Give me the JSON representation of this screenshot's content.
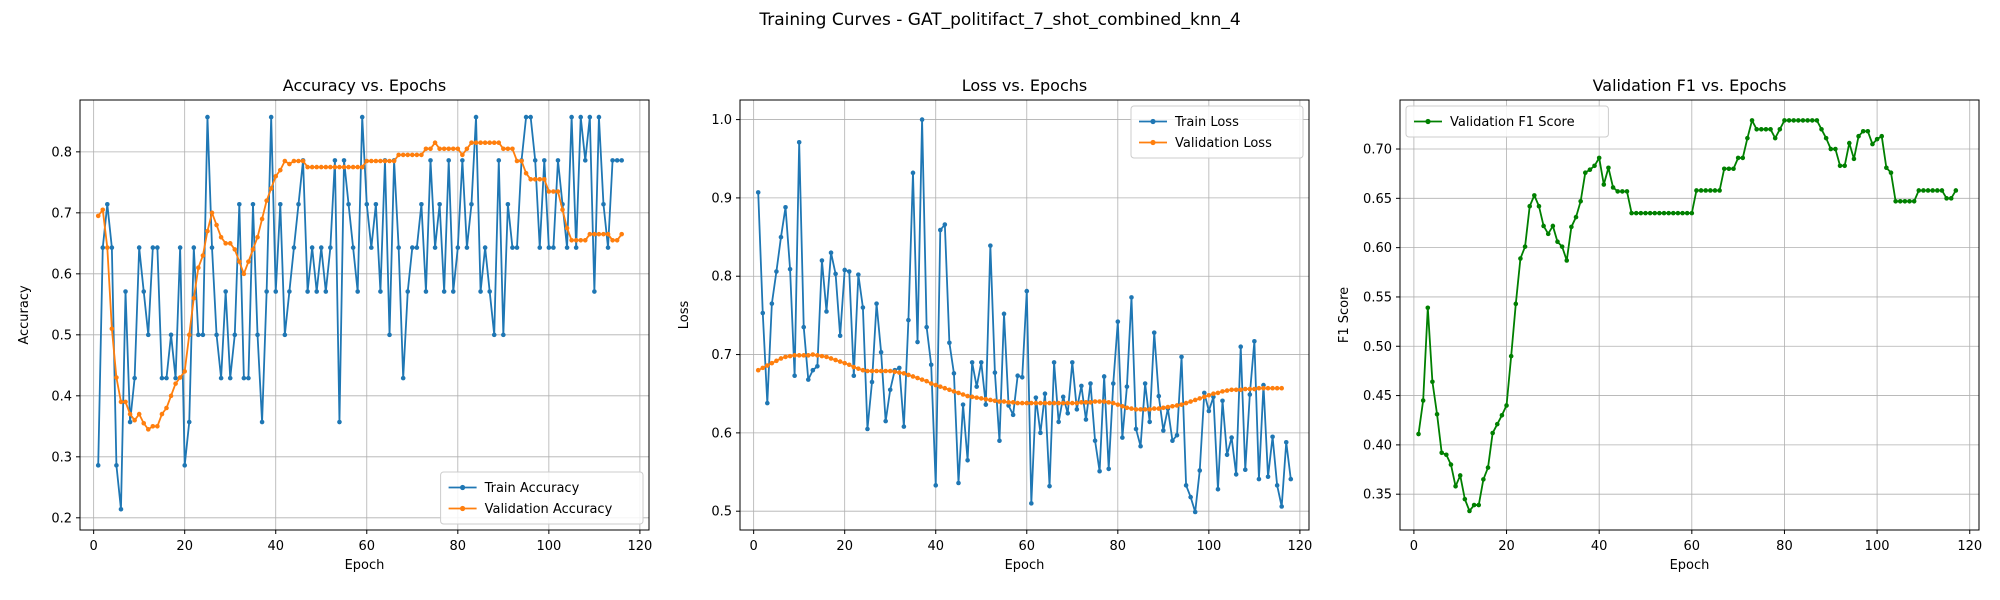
{
  "figure": {
    "suptitle": "Training Curves - GAT_politifact_7_shot_combined_knn_4"
  },
  "chart_data": [
    {
      "type": "line",
      "title": "Accuracy vs. Epochs",
      "xlabel": "Epoch",
      "ylabel": "Accuracy",
      "xlim": [
        -3,
        122
      ],
      "ylim": [
        0.18,
        0.885
      ],
      "xticks": [
        0,
        20,
        40,
        60,
        80,
        100,
        120
      ],
      "yticks": [
        0.2,
        0.3,
        0.4,
        0.5,
        0.6,
        0.7,
        0.8
      ],
      "ytick_decimals": 1,
      "grid": true,
      "legend": "lower-right",
      "x_start": 1,
      "series": [
        {
          "name": "Train Accuracy",
          "color": "#1f77b4",
          "values": [
            0.286,
            0.643,
            0.714,
            0.643,
            0.286,
            0.214,
            0.571,
            0.357,
            0.429,
            0.643,
            0.571,
            0.5,
            0.643,
            0.643,
            0.429,
            0.429,
            0.5,
            0.429,
            0.643,
            0.286,
            0.357,
            0.643,
            0.5,
            0.5,
            0.857,
            0.643,
            0.5,
            0.429,
            0.571,
            0.429,
            0.5,
            0.714,
            0.429,
            0.429,
            0.714,
            0.5,
            0.357,
            0.571,
            0.857,
            0.571,
            0.714,
            0.5,
            0.571,
            0.643,
            0.714,
            0.786,
            0.571,
            0.643,
            0.571,
            0.643,
            0.571,
            0.643,
            0.786,
            0.357,
            0.786,
            0.714,
            0.643,
            0.571,
            0.857,
            0.714,
            0.643,
            0.714,
            0.571,
            0.786,
            0.5,
            0.786,
            0.643,
            0.429,
            0.571,
            0.643,
            0.643,
            0.714,
            0.571,
            0.786,
            0.643,
            0.714,
            0.571,
            0.786,
            0.571,
            0.643,
            0.786,
            0.643,
            0.714,
            0.857,
            0.571,
            0.643,
            0.571,
            0.5,
            0.786,
            0.5,
            0.714,
            0.643,
            0.643,
            0.786,
            0.857,
            0.857,
            0.786,
            0.643,
            0.786,
            0.643,
            0.643,
            0.786,
            0.714,
            0.643,
            0.857,
            0.643,
            0.857,
            0.786,
            0.857,
            0.571,
            0.857,
            0.714,
            0.643,
            0.786,
            0.786,
            0.786
          ]
        },
        {
          "name": "Validation Accuracy",
          "color": "#ff7f0e",
          "values": [
            0.695,
            0.705,
            0.643,
            0.51,
            0.43,
            0.39,
            0.39,
            0.37,
            0.36,
            0.37,
            0.355,
            0.345,
            0.35,
            0.35,
            0.37,
            0.38,
            0.4,
            0.42,
            0.43,
            0.44,
            0.5,
            0.56,
            0.61,
            0.63,
            0.67,
            0.7,
            0.68,
            0.66,
            0.65,
            0.65,
            0.64,
            0.62,
            0.6,
            0.62,
            0.64,
            0.66,
            0.69,
            0.72,
            0.74,
            0.76,
            0.77,
            0.785,
            0.78,
            0.785,
            0.785,
            0.785,
            0.775,
            0.775,
            0.775,
            0.775,
            0.775,
            0.775,
            0.775,
            0.775,
            0.775,
            0.775,
            0.775,
            0.775,
            0.775,
            0.785,
            0.785,
            0.785,
            0.785,
            0.785,
            0.785,
            0.785,
            0.795,
            0.795,
            0.795,
            0.795,
            0.795,
            0.795,
            0.805,
            0.805,
            0.815,
            0.805,
            0.805,
            0.805,
            0.805,
            0.805,
            0.795,
            0.805,
            0.815,
            0.815,
            0.815,
            0.815,
            0.815,
            0.815,
            0.815,
            0.805,
            0.805,
            0.805,
            0.785,
            0.785,
            0.765,
            0.755,
            0.755,
            0.755,
            0.755,
            0.735,
            0.735,
            0.735,
            0.705,
            0.675,
            0.655,
            0.655,
            0.655,
            0.655,
            0.665,
            0.665,
            0.665,
            0.665,
            0.665,
            0.655,
            0.655,
            0.665
          ]
        }
      ]
    },
    {
      "type": "line",
      "title": "Loss vs. Epochs",
      "xlabel": "Epoch",
      "ylabel": "Loss",
      "xlim": [
        -3,
        122
      ],
      "ylim": [
        0.476,
        1.025
      ],
      "xticks": [
        0,
        20,
        40,
        60,
        80,
        100,
        120
      ],
      "yticks": [
        0.5,
        0.6,
        0.7,
        0.8,
        0.9,
        1.0
      ],
      "ytick_decimals": 1,
      "grid": true,
      "legend": "upper-right",
      "x_start": 1,
      "series": [
        {
          "name": "Train Loss",
          "color": "#1f77b4",
          "values": [
            0.907,
            0.753,
            0.638,
            0.765,
            0.806,
            0.85,
            0.888,
            0.809,
            0.673,
            0.971,
            0.735,
            0.668,
            0.68,
            0.685,
            0.82,
            0.755,
            0.83,
            0.803,
            0.724,
            0.808,
            0.806,
            0.673,
            0.802,
            0.76,
            0.605,
            0.665,
            0.765,
            0.703,
            0.615,
            0.655,
            0.68,
            0.683,
            0.608,
            0.744,
            0.932,
            0.716,
            1.0,
            0.735,
            0.687,
            0.533,
            0.859,
            0.866,
            0.715,
            0.676,
            0.536,
            0.636,
            0.565,
            0.69,
            0.659,
            0.69,
            0.636,
            0.839,
            0.677,
            0.59,
            0.752,
            0.635,
            0.623,
            0.673,
            0.671,
            0.781,
            0.51,
            0.645,
            0.6,
            0.65,
            0.532,
            0.69,
            0.614,
            0.646,
            0.625,
            0.69,
            0.63,
            0.66,
            0.617,
            0.663,
            0.59,
            0.551,
            0.672,
            0.554,
            0.663,
            0.742,
            0.594,
            0.659,
            0.773,
            0.605,
            0.583,
            0.663,
            0.614,
            0.728,
            0.647,
            0.603,
            0.631,
            0.59,
            0.597,
            0.697,
            0.533,
            0.518,
            0.499,
            0.552,
            0.651,
            0.628,
            0.646,
            0.528,
            0.641,
            0.572,
            0.594,
            0.547,
            0.71,
            0.553,
            0.649,
            0.717,
            0.541,
            0.661,
            0.544,
            0.595,
            0.533,
            0.506,
            0.588,
            0.541
          ]
        },
        {
          "name": "Validation Loss",
          "color": "#ff7f0e",
          "values": [
            0.68,
            0.683,
            0.686,
            0.689,
            0.692,
            0.695,
            0.697,
            0.698,
            0.699,
            0.699,
            0.699,
            0.699,
            0.7,
            0.699,
            0.698,
            0.697,
            0.695,
            0.693,
            0.691,
            0.689,
            0.687,
            0.684,
            0.682,
            0.68,
            0.679,
            0.679,
            0.679,
            0.679,
            0.679,
            0.679,
            0.678,
            0.677,
            0.676,
            0.674,
            0.672,
            0.67,
            0.668,
            0.666,
            0.663,
            0.661,
            0.659,
            0.657,
            0.655,
            0.653,
            0.651,
            0.649,
            0.647,
            0.646,
            0.645,
            0.644,
            0.643,
            0.642,
            0.641,
            0.64,
            0.64,
            0.639,
            0.639,
            0.638,
            0.638,
            0.638,
            0.638,
            0.638,
            0.638,
            0.638,
            0.638,
            0.638,
            0.638,
            0.638,
            0.638,
            0.638,
            0.638,
            0.639,
            0.639,
            0.639,
            0.64,
            0.64,
            0.64,
            0.639,
            0.638,
            0.636,
            0.634,
            0.632,
            0.631,
            0.63,
            0.63,
            0.63,
            0.63,
            0.631,
            0.631,
            0.632,
            0.633,
            0.634,
            0.635,
            0.636,
            0.638,
            0.64,
            0.642,
            0.644,
            0.646,
            0.648,
            0.65,
            0.651,
            0.653,
            0.654,
            0.655,
            0.655,
            0.655,
            0.656,
            0.656,
            0.656,
            0.657,
            0.657,
            0.657,
            0.657,
            0.657,
            0.657
          ]
        }
      ]
    },
    {
      "type": "line",
      "title": "Validation F1 vs. Epochs",
      "xlabel": "Epoch",
      "ylabel": "F1 Score",
      "xlim": [
        -3,
        122
      ],
      "ylim": [
        0.3137,
        0.7497
      ],
      "xticks": [
        0,
        20,
        40,
        60,
        80,
        100,
        120
      ],
      "yticks": [
        0.35,
        0.4,
        0.45,
        0.5,
        0.55,
        0.6,
        0.65,
        0.7
      ],
      "ytick_decimals": 2,
      "grid": true,
      "legend": "upper-left",
      "x_start": 1,
      "series": [
        {
          "name": "Validation F1 Score",
          "color": "#008000",
          "values": [
            0.411,
            0.445,
            0.539,
            0.464,
            0.431,
            0.392,
            0.39,
            0.38,
            0.358,
            0.369,
            0.345,
            0.333,
            0.339,
            0.339,
            0.365,
            0.377,
            0.412,
            0.421,
            0.43,
            0.44,
            0.49,
            0.543,
            0.589,
            0.601,
            0.642,
            0.653,
            0.642,
            0.622,
            0.614,
            0.622,
            0.606,
            0.601,
            0.587,
            0.621,
            0.631,
            0.647,
            0.676,
            0.679,
            0.683,
            0.691,
            0.664,
            0.681,
            0.661,
            0.657,
            0.657,
            0.657,
            0.635,
            0.635,
            0.635,
            0.635,
            0.635,
            0.635,
            0.635,
            0.635,
            0.635,
            0.635,
            0.635,
            0.635,
            0.635,
            0.635,
            0.658,
            0.658,
            0.658,
            0.658,
            0.658,
            0.658,
            0.68,
            0.68,
            0.68,
            0.691,
            0.691,
            0.711,
            0.729,
            0.72,
            0.72,
            0.72,
            0.72,
            0.711,
            0.72,
            0.729,
            0.729,
            0.729,
            0.729,
            0.729,
            0.729,
            0.729,
            0.729,
            0.72,
            0.711,
            0.7,
            0.7,
            0.683,
            0.683,
            0.706,
            0.69,
            0.713,
            0.718,
            0.718,
            0.705,
            0.71,
            0.713,
            0.681,
            0.676,
            0.647,
            0.647,
            0.647,
            0.647,
            0.647,
            0.658,
            0.658,
            0.658,
            0.658,
            0.658,
            0.658,
            0.65,
            0.65,
            0.658
          ]
        }
      ]
    }
  ]
}
